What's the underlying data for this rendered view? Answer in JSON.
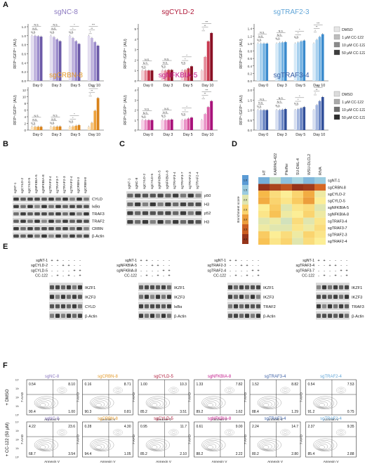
{
  "panel_letters": [
    "A",
    "B",
    "C",
    "D",
    "E",
    "F"
  ],
  "panelA": {
    "ylabel": "RFP⁺/GFP⁺ (AU)",
    "days": [
      "Day 0",
      "Day 3",
      "Day 5",
      "Day 10"
    ],
    "legend": [
      "DMSO",
      "1 μM CC-122",
      "10 μM CC-122",
      "50 μM CC-122"
    ],
    "ns": "N.S.",
    "star": "*",
    "star2": "**",
    "star3": "***"
  },
  "chart_data": [
    {
      "type": "bar",
      "title": "sgNC-8",
      "title_color": "#8a78c0",
      "categories": [
        "Day 0",
        "Day 3",
        "Day 5",
        "Day 10"
      ],
      "yticks": [
        "0.0",
        "0.2",
        "0.4",
        "0.6",
        "0.8",
        "1.0",
        "1.2"
      ],
      "ylim": [
        0,
        1.2
      ],
      "series": [
        {
          "name": "DMSO",
          "color": "#e2dcef",
          "values": [
            1.0,
            1.0,
            1.0,
            1.0
          ]
        },
        {
          "name": "1 μM CC-122",
          "color": "#bfb2dd",
          "values": [
            1.0,
            0.97,
            0.95,
            0.95
          ]
        },
        {
          "name": "10 μM CC-122",
          "color": "#9c8ccc",
          "values": [
            0.99,
            0.92,
            0.88,
            0.86
          ]
        },
        {
          "name": "50 μM CC-122",
          "color": "#6c5aa8",
          "values": [
            0.98,
            0.88,
            0.82,
            0.78
          ]
        }
      ]
    },
    {
      "type": "bar",
      "title": "sgCYLD-2",
      "title_color": "#b01a3a",
      "categories": [
        "Day 0",
        "Day 3",
        "Day 5",
        "Day 10"
      ],
      "yticks": [
        "0",
        "1",
        "2",
        "3",
        "4",
        "5"
      ],
      "ylim": [
        0,
        5.2
      ],
      "series": [
        {
          "name": "DMSO",
          "color": "#f3cdd3",
          "values": [
            1.0,
            1.0,
            1.0,
            1.0
          ]
        },
        {
          "name": "1 μM CC-122",
          "color": "#e58c9b",
          "values": [
            1.0,
            1.0,
            1.05,
            2.3
          ]
        },
        {
          "name": "10 μM CC-122",
          "color": "#c8394f",
          "values": [
            1.0,
            1.05,
            1.2,
            3.8
          ]
        },
        {
          "name": "50 μM CC-122",
          "color": "#8a1024",
          "values": [
            1.0,
            1.05,
            1.4,
            4.6
          ]
        }
      ]
    },
    {
      "type": "bar",
      "title": "sgTRAF2-3",
      "title_color": "#62a6d8",
      "categories": [
        "Day 0",
        "Day 3",
        "Day 5",
        "Day 10"
      ],
      "yticks": [
        "0.0",
        "0.2",
        "0.4",
        "0.6",
        "0.8",
        "1.0",
        "1.2",
        "1.4"
      ],
      "ylim": [
        0,
        1.45
      ],
      "series": [
        {
          "name": "DMSO",
          "color": "#d5e9f7",
          "values": [
            1.0,
            1.0,
            1.0,
            1.0
          ]
        },
        {
          "name": "1 μM CC-122",
          "color": "#a7d0ee",
          "values": [
            1.0,
            1.02,
            1.03,
            1.1
          ]
        },
        {
          "name": "10 μM CC-122",
          "color": "#74b2e2",
          "values": [
            1.0,
            1.03,
            1.06,
            1.18
          ]
        },
        {
          "name": "50 μM CC-122",
          "color": "#3b8bcd",
          "values": [
            1.0,
            1.04,
            1.08,
            1.25
          ]
        }
      ]
    },
    {
      "type": "bar",
      "title": "sgCRBN-8",
      "title_color": "#e49a2a",
      "categories": [
        "Day 0",
        "Day 3",
        "Day 5",
        "Day 10"
      ],
      "yticks": [
        "0",
        "2",
        "4",
        "6",
        "8",
        "10",
        "12"
      ],
      "ylim": [
        0,
        12
      ],
      "series": [
        {
          "name": "DMSO",
          "color": "#fbe3bf",
          "values": [
            1.0,
            1.0,
            1.0,
            1.0
          ]
        },
        {
          "name": "1 μM CC-122",
          "color": "#f5c27a",
          "values": [
            1.0,
            1.0,
            1.1,
            2.2
          ]
        },
        {
          "name": "10 μM CC-122",
          "color": "#eea23c",
          "values": [
            1.0,
            1.05,
            1.3,
            5.8
          ]
        },
        {
          "name": "50 μM CC-122",
          "color": "#d9821a",
          "values": [
            1.0,
            1.1,
            1.5,
            9.6
          ]
        }
      ]
    },
    {
      "type": "bar",
      "title": "sgNFKBIA-5",
      "title_color": "#c2178a",
      "categories": [
        "Day 0",
        "Day 3",
        "Day 5",
        "Day 10"
      ],
      "yticks": [
        "0",
        "1",
        "2",
        "3",
        "4"
      ],
      "ylim": [
        0,
        4
      ],
      "series": [
        {
          "name": "DMSO",
          "color": "#f6cfe6",
          "values": [
            1.0,
            1.0,
            1.0,
            1.0
          ]
        },
        {
          "name": "1 μM CC-122",
          "color": "#ea95c8",
          "values": [
            1.0,
            1.0,
            1.05,
            1.6
          ]
        },
        {
          "name": "10 μM CC-122",
          "color": "#d7569f",
          "values": [
            1.0,
            1.02,
            1.15,
            2.3
          ]
        },
        {
          "name": "50 μM CC-122",
          "color": "#a8127a",
          "values": [
            1.0,
            1.05,
            1.25,
            2.9
          ]
        }
      ]
    },
    {
      "type": "bar",
      "title": "sgTRAF3-4",
      "title_color": "#3a5fa6",
      "categories": [
        "Day 0",
        "Day 3",
        "Day 5",
        "Day 10"
      ],
      "yticks": [
        "0.0",
        "0.5",
        "1.0",
        "1.5",
        "2.0"
      ],
      "ylim": [
        0,
        2.0
      ],
      "series": [
        {
          "name": "DMSO",
          "color": "#d6def0",
          "values": [
            1.0,
            1.0,
            1.0,
            1.0
          ]
        },
        {
          "name": "1 μM CC-122",
          "color": "#a2b5de",
          "values": [
            1.0,
            1.0,
            1.05,
            1.25
          ]
        },
        {
          "name": "10 μM CC-122",
          "color": "#6b86c4",
          "values": [
            1.0,
            1.02,
            1.1,
            1.45
          ]
        },
        {
          "name": "50 μM CC-122",
          "color": "#32509a",
          "values": [
            1.0,
            1.05,
            1.15,
            1.65
          ]
        }
      ]
    }
  ],
  "panelB": {
    "lanes": [
      "sgNT-1",
      "sgCYLD-2",
      "sgCYLD-5",
      "sgNFKBIA-5",
      "sgNFKBIA-8",
      "sgTRAF3-4",
      "sgTRAF3-7",
      "sgTRAF2-3",
      "sgTRAF2-4",
      "sgCRBN-3",
      "sgCRBN-8"
    ],
    "bands": [
      "CYLD",
      "IκBα",
      "TRAF3",
      "TRAF2",
      "CRBN",
      "β-Actin"
    ]
  },
  "panelC": {
    "lanes": [
      "sgNT-1",
      "sgNC-8",
      "sgCYLD-2",
      "sgCYLD-5",
      "sgNFKBIA-5",
      "sgNFKBIA-8",
      "sgTRAF3-4",
      "sgTRAF3-7",
      "sgTRAF2-3",
      "sgTRAF2-4"
    ],
    "bands": [
      "p50",
      "H3",
      "p52",
      "H3"
    ]
  },
  "panelD": {
    "columns": [
      "HT",
      "KARPAS-422",
      "Pfeiffer",
      "SU-DHL-4",
      "WSU-DLCL2",
      "RIVA"
    ],
    "rows": [
      "sgNT-1",
      "sgCRBN-8",
      "sgCYLD-2",
      "sgCYLD-5",
      "sgNFKBIA-5",
      "sgNFKBIA-8",
      "sgTRAF3-4",
      "sgTRAF3-7",
      "sgTRAF2-3",
      "sgTRAF2-4"
    ],
    "scale_label": "Enrichment score",
    "scale_ticks": [
      "1.0",
      "1.5",
      "2.0",
      "2.5",
      "3.0",
      "3.5",
      "4.0"
    ],
    "values": [
      [
        1.2,
        1.8,
        1.4,
        1.6,
        1.3,
        1.5
      ],
      [
        4.0,
        3.8,
        3.6,
        4.0,
        3.9,
        3.4
      ],
      [
        2.8,
        2.4,
        2.2,
        2.5,
        2.9,
        2.1
      ],
      [
        2.9,
        2.5,
        2.3,
        2.6,
        3.0,
        2.2
      ],
      [
        2.2,
        2.6,
        2.0,
        2.3,
        2.4,
        2.0
      ],
      [
        2.3,
        2.7,
        2.1,
        2.2,
        2.5,
        2.1
      ],
      [
        2.0,
        2.1,
        1.9,
        2.4,
        2.0,
        2.3
      ],
      [
        2.1,
        2.0,
        2.0,
        2.3,
        2.1,
        2.4
      ],
      [
        2.6,
        2.2,
        2.4,
        2.1,
        2.5,
        2.3
      ],
      [
        2.7,
        2.3,
        2.5,
        2.0,
        2.4,
        2.2
      ]
    ]
  },
  "panelE": {
    "blots": [
      {
        "rows": [
          "sgNT-1",
          "sgCYLD-2",
          "sgCYLD-5",
          "CC-122"
        ],
        "signs": [
          [
            "+",
            "+",
            "-",
            "-",
            "-",
            "-"
          ],
          [
            "-",
            "-",
            "+",
            "+",
            "-",
            "-"
          ],
          [
            "-",
            "-",
            "-",
            "-",
            "+",
            "+"
          ],
          [
            "-",
            "+",
            "-",
            "+",
            "-",
            "+"
          ]
        ],
        "bands": [
          "IKZF1",
          "IKZF3",
          "CYLD",
          "β-Actin"
        ]
      },
      {
        "rows": [
          "sgNT-1",
          "sgNFKBIA-5",
          "sgNFKBIA-8",
          "CC-122"
        ],
        "signs": [
          [
            "+",
            "+",
            "-",
            "-",
            "-",
            "-"
          ],
          [
            "-",
            "-",
            "+",
            "+",
            "-",
            "-"
          ],
          [
            "-",
            "-",
            "-",
            "-",
            "+",
            "+"
          ],
          [
            "-",
            "+",
            "-",
            "+",
            "-",
            "+"
          ]
        ],
        "bands": [
          "IKZF1",
          "IKZF3",
          "IκBα",
          "β-Actin"
        ]
      },
      {
        "rows": [
          "sgNT-1",
          "sgTRAF2-3",
          "sgTRAF2-4",
          "CC-122"
        ],
        "signs": [
          [
            "+",
            "+",
            "-",
            "-",
            "-",
            "-"
          ],
          [
            "-",
            "-",
            "+",
            "+",
            "-",
            "-"
          ],
          [
            "-",
            "-",
            "-",
            "-",
            "+",
            "+"
          ],
          [
            "-",
            "+",
            "-",
            "+",
            "-",
            "+"
          ]
        ],
        "bands": [
          "IKZF1",
          "IKZF3",
          "TRAF2",
          "β-Actin"
        ]
      },
      {
        "rows": [
          "sgNT-1",
          "sgTRAF3-4",
          "sgTRAF3-7",
          "CC-122"
        ],
        "signs": [
          [
            "+",
            "+",
            "-",
            "-",
            "-",
            "-"
          ],
          [
            "-",
            "-",
            "+",
            "+",
            "-",
            "-"
          ],
          [
            "-",
            "-",
            "-",
            "-",
            "+",
            "+"
          ],
          [
            "-",
            "+",
            "-",
            "+",
            "-",
            "+"
          ]
        ],
        "bands": [
          "IKZF1",
          "IKZF3",
          "TRAF3",
          "β-Actin"
        ]
      }
    ]
  },
  "panelF": {
    "row_labels": [
      "+ DMSO",
      "+ CC-122 (50 μM)"
    ],
    "xlabel": "Annexin V",
    "ylabel": "7-AAD",
    "ticks": [
      "10⁰",
      "10¹",
      "10²",
      "10³",
      "10⁴"
    ],
    "plots": [
      [
        {
          "title": "sgNC-8",
          "color": "#8a78c0",
          "q": [
            "0.54",
            "8.10",
            "90.4",
            "1.00"
          ]
        },
        {
          "title": "sgCRBN-8",
          "color": "#e49a2a",
          "q": [
            "0.16",
            "8.71",
            "90.3",
            "0.81"
          ]
        },
        {
          "title": "sgCYLD-5",
          "color": "#b01a3a",
          "q": [
            "1.00",
            "10.3",
            "85.2",
            "3.51"
          ]
        },
        {
          "title": "sgNFKBIA-8",
          "color": "#c2178a",
          "q": [
            "1.33",
            "7.82",
            "89.2",
            "1.62"
          ]
        },
        {
          "title": "sgTRAF3-4",
          "color": "#3a5fa6",
          "q": [
            "1.52",
            "8.82",
            "88.4",
            "1.29"
          ]
        },
        {
          "title": "sgTRAF2-4",
          "color": "#62a6d8",
          "q": [
            "0.54",
            "7.53",
            "91.2",
            "0.75"
          ]
        }
      ],
      [
        {
          "title": "sgNC-8",
          "color": "#8a78c0",
          "q": [
            "4.22",
            "23.6",
            "68.7",
            "3.54"
          ]
        },
        {
          "title": "sgCRBN-8",
          "color": "#e49a2a",
          "q": [
            "0.28",
            "4.30",
            "94.4",
            "1.05"
          ]
        },
        {
          "title": "sgCYLD-5",
          "color": "#b01a3a",
          "q": [
            "0.95",
            "11.7",
            "85.2",
            "2.10"
          ]
        },
        {
          "title": "sgNFKBIA-8",
          "color": "#c2178a",
          "q": [
            "0.61",
            "9.00",
            "88.2",
            "2.22"
          ]
        },
        {
          "title": "sgTRAF3-4",
          "color": "#3a5fa6",
          "q": [
            "2.24",
            "14.7",
            "80.2",
            "2.80"
          ]
        },
        {
          "title": "sgTRAF2-4",
          "color": "#62a6d8",
          "q": [
            "2.37",
            "9.35",
            "85.4",
            "2.88"
          ]
        }
      ]
    ]
  }
}
